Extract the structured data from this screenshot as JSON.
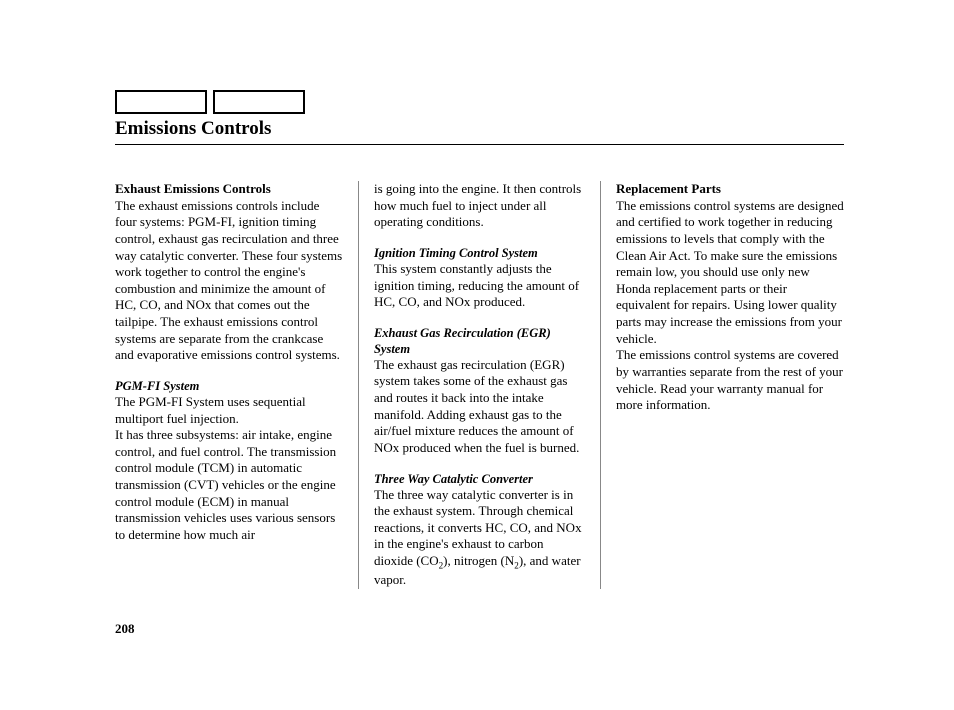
{
  "page": {
    "title": "Emissions Controls",
    "number": "208"
  },
  "col1": {
    "h1": "Exhaust Emissions Controls",
    "p1": "The exhaust emissions controls include four systems: PGM-FI, ignition timing control, exhaust gas recirculation and three way catalytic converter. These four systems work together to control the engine's combustion and minimize the amount of HC, CO, and NOx that comes out the tailpipe. The exhaust emissions control systems are separate from the crankcase and evaporative emissions control systems.",
    "h2": "PGM-FI System",
    "p2": "The PGM-FI System uses sequential multiport fuel injection.",
    "p3": "It has three subsystems: air intake, engine control, and fuel control. The transmission control module (TCM) in automatic transmission (CVT) vehicles or the engine control module (ECM) in manual transmission vehicles uses various sensors to determine how much air"
  },
  "col2": {
    "p1": "is going into the engine. It then controls how much fuel to inject under all operating conditions.",
    "h1": "Ignition Timing Control System",
    "p2": "This system constantly adjusts the ignition timing, reducing the amount of HC, CO, and NOx produced.",
    "h2": "Exhaust Gas Recirculation (EGR) System",
    "p3": "The exhaust gas recirculation (EGR) system takes some of the exhaust gas and routes it back into the intake manifold. Adding exhaust gas to the air/fuel mixture reduces the amount of NOx produced when the fuel is burned.",
    "h3": "Three Way Catalytic Converter",
    "p4a": "The three way catalytic converter is in the exhaust system. Through chemical reactions, it converts HC, CO, and NOx in the engine's exhaust to carbon dioxide (CO",
    "p4b": "), nitrogen (N",
    "p4c": "), and water vapor."
  },
  "col3": {
    "h1": "Replacement Parts",
    "p1": "The emissions control systems are designed and certified to work together in reducing emissions to levels that comply with the Clean Air Act. To make sure the emissions remain low, you should use only new Honda replacement parts or their equivalent for repairs. Using lower quality parts may increase the emissions from your vehicle.",
    "p2": "The emissions control systems are covered by warranties separate from the rest of your vehicle. Read your warranty manual for more information."
  }
}
